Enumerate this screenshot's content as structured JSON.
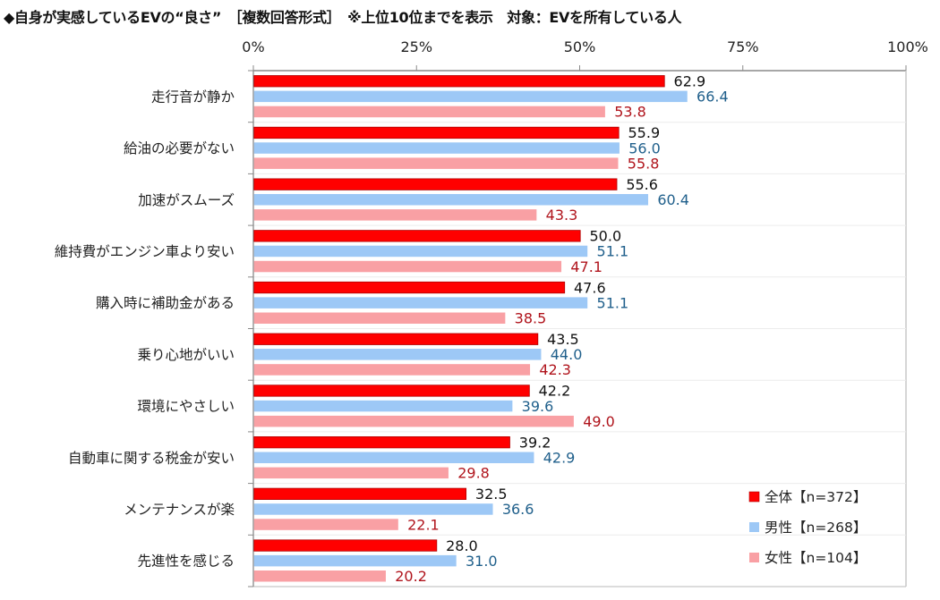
{
  "title": "◆自身が実感しているEVの“良さ”　［複数回答形式］　※上位10位までを表示　対象：EVを所有している人",
  "chart_data": {
    "type": "bar",
    "orientation": "horizontal",
    "title": "◆自身が実感しているEVの“良さ”　［複数回答形式］　※上位10位までを表示　対象：EVを所有している人",
    "xlabel": "",
    "ylabel": "",
    "xlim": [
      0,
      100
    ],
    "x_ticks": [
      "0%",
      "25%",
      "50%",
      "75%",
      "100%"
    ],
    "x_tick_values": [
      0,
      25,
      50,
      75,
      100
    ],
    "grid": "horizontal-separators",
    "legend_position": "bottom-right",
    "categories": [
      "走行音が静か",
      "給油の必要がない",
      "加速がスムーズ",
      "維持費がエンジン車より安い",
      "購入時に補助金がある",
      "乗り心地がいい",
      "環境にやさしい",
      "自動車に関する税金が安い",
      "メンテナンスが楽",
      "先進性を感じる"
    ],
    "series": [
      {
        "name": "全体【n=372】",
        "color": "#ff0000",
        "label_color": "#111111",
        "values": [
          62.9,
          55.9,
          55.6,
          50.0,
          47.6,
          43.5,
          42.2,
          39.2,
          32.5,
          28.0
        ],
        "labels": [
          "62.9",
          "55.9",
          "55.6",
          "50.0",
          "47.6",
          "43.5",
          "42.2",
          "39.2",
          "32.5",
          "28.0"
        ]
      },
      {
        "name": "男性【n=268】",
        "color": "#9dc8f6",
        "label_color": "#1f5f8b",
        "values": [
          66.4,
          56.0,
          60.4,
          51.1,
          51.1,
          44.0,
          39.6,
          42.9,
          36.6,
          31.0
        ],
        "labels": [
          "66.4",
          "56.0",
          "60.4",
          "51.1",
          "51.1",
          "44.0",
          "39.6",
          "42.9",
          "36.6",
          "31.0"
        ]
      },
      {
        "name": "女性【n=104】",
        "color": "#f9a0a4",
        "label_color": "#b0141c",
        "values": [
          53.8,
          55.8,
          43.3,
          47.1,
          38.5,
          42.3,
          49.0,
          29.8,
          22.1,
          20.2
        ],
        "labels": [
          "53.8",
          "55.8",
          "43.3",
          "47.1",
          "38.5",
          "42.3",
          "49.0",
          "29.8",
          "22.1",
          "20.2"
        ]
      }
    ]
  }
}
